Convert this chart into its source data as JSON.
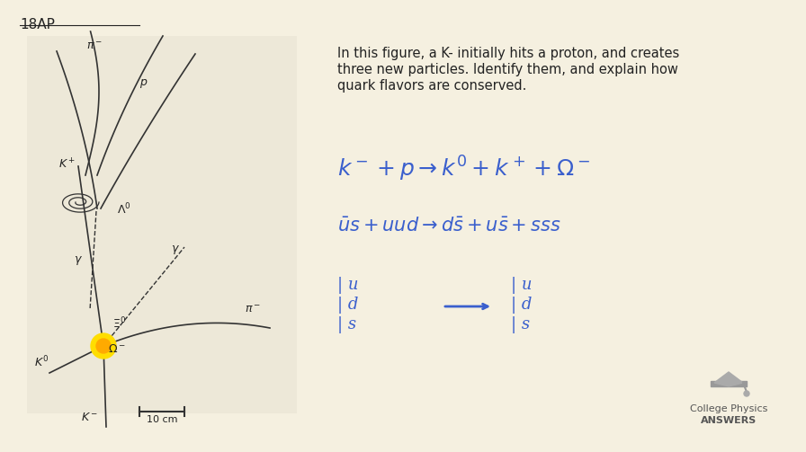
{
  "bg_color": "#f5f0e0",
  "title_text": "18AP",
  "problem_text_line1": "In this figure, a K- initially hits a proton, and creates",
  "problem_text_line2": "three new particles. Identify them, and explain how",
  "problem_text_line3": "quark flavors are conserved.",
  "scale_bar_text": "10 cm",
  "handwriting_color": "#3a5fcd",
  "diagram_color": "#333333",
  "text_color": "#222222",
  "logo_text1": "College Physics",
  "logo_text2": "ANSWERS"
}
